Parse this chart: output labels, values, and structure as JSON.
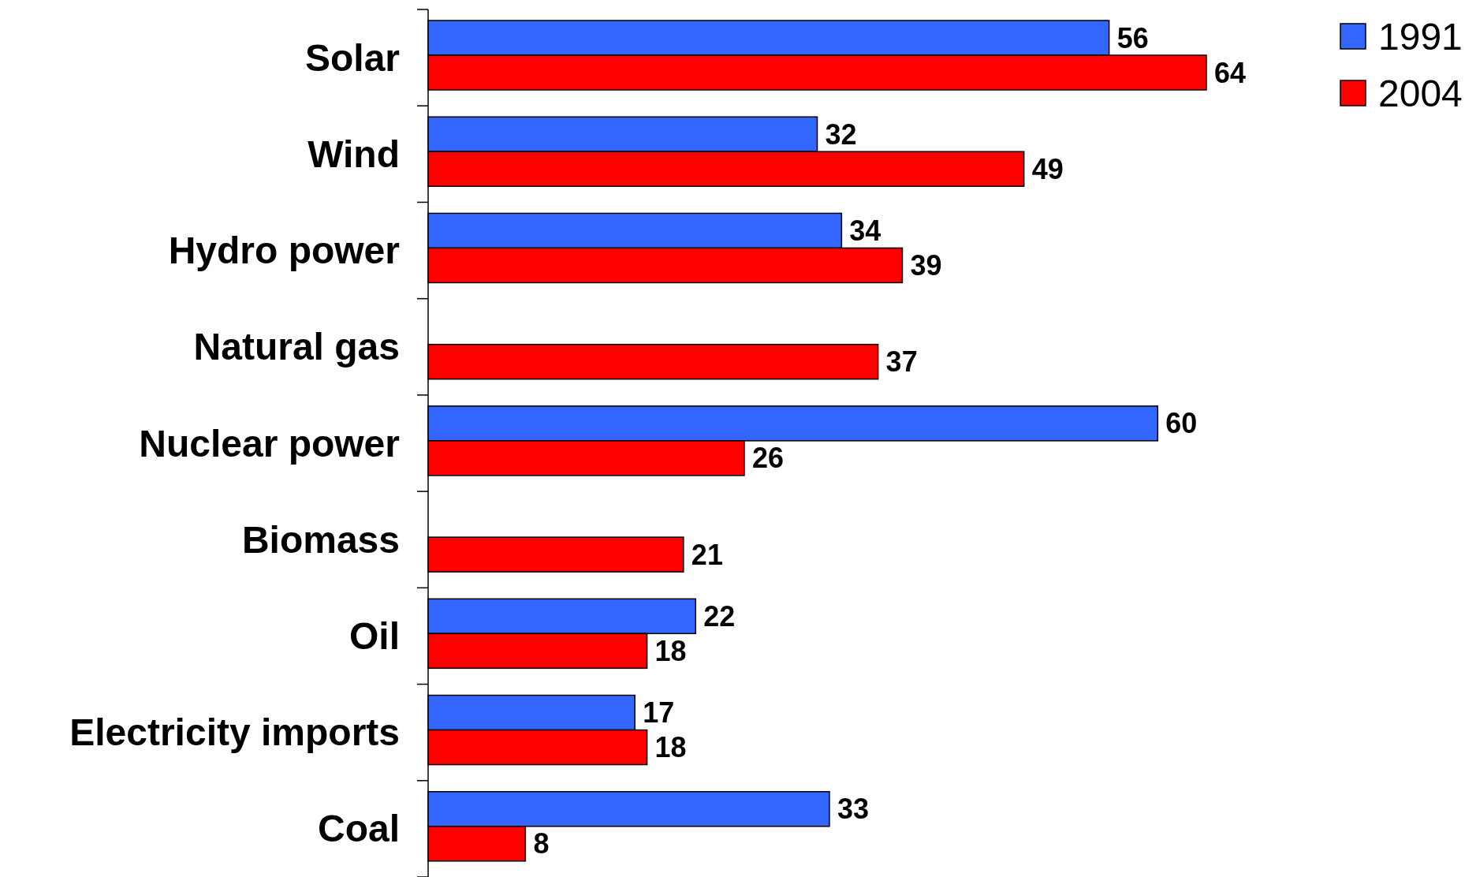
{
  "chart_data": {
    "type": "bar",
    "orientation": "horizontal",
    "data_labels": true,
    "legend": "top right",
    "categories": [
      "Solar",
      "Wind",
      "Hydro power",
      "Natural gas",
      "Nuclear power",
      "Biomass",
      "Oil",
      "Electricity imports",
      "Coal"
    ],
    "series": [
      {
        "name": "1991",
        "color": "#3366ff",
        "values": [
          56,
          32,
          34,
          null,
          60,
          null,
          22,
          17,
          33
        ]
      },
      {
        "name": "2004",
        "color": "#ff0000",
        "values": [
          64,
          49,
          39,
          37,
          26,
          21,
          18,
          18,
          8
        ]
      }
    ]
  }
}
